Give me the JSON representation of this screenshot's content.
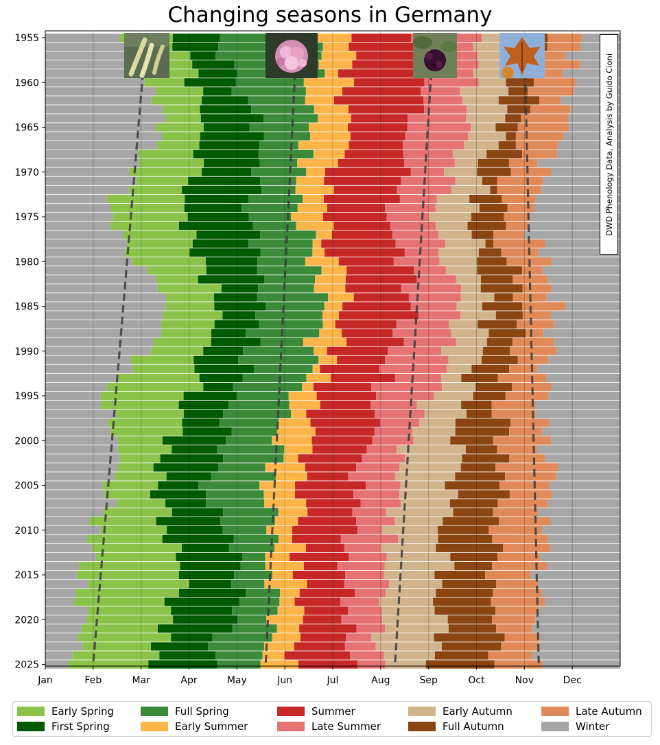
{
  "chart_data": {
    "type": "bar",
    "orientation": "horizontal-stacked",
    "title": "Changing seasons in Germany",
    "credit": "DWD Phenology Data, Analysis by Guido Cioni",
    "x_axis": {
      "range_months": [
        0,
        12
      ],
      "tick_labels": [
        "Jan",
        "Feb",
        "Mar",
        "Apr",
        "May",
        "Jun",
        "Jul",
        "Aug",
        "Sep",
        "Oct",
        "Nov",
        "Dec"
      ]
    },
    "y_axis": {
      "range_years": [
        1955,
        2025
      ],
      "tick_labels": [
        "1955",
        "1960",
        "1965",
        "1970",
        "1975",
        "1980",
        "1985",
        "1990",
        "1995",
        "2000",
        "2005",
        "2010",
        "2015",
        "2020",
        "2025"
      ]
    },
    "grid": "vertical, at month boundaries",
    "legend_placement": "bottom",
    "seasons": [
      {
        "name": "Early Spring",
        "color": "#8bc34a"
      },
      {
        "name": "First Spring",
        "color": "#005a00"
      },
      {
        "name": "Full Spring",
        "color": "#3a8a3a"
      },
      {
        "name": "Early Summer",
        "color": "#fdb54a"
      },
      {
        "name": "Summer",
        "color": "#c62828"
      },
      {
        "name": "Late Summer",
        "color": "#e57373"
      },
      {
        "name": "Early Autumn",
        "color": "#d2b48c"
      },
      {
        "name": "Full Autumn",
        "color": "#8b4513"
      },
      {
        "name": "Late Autumn",
        "color": "#e08a5a"
      },
      {
        "name": "Winter",
        "color": "#a6a6a6"
      }
    ],
    "anchor_years": [
      1955,
      1965,
      1975,
      1985,
      1995,
      2005,
      2015,
      2025
    ],
    "season_start_months_by_anchor": [
      [
        1.75,
        2.65,
        3.6,
        5.7,
        6.35,
        7.8,
        8.95,
        9.75,
        10.45,
        11.05
      ],
      [
        2.45,
        3.5,
        4.45,
        5.5,
        6.2,
        7.7,
        8.8,
        9.45,
        9.95,
        10.7
      ],
      [
        1.2,
        2.8,
        4.3,
        5.35,
        5.8,
        7.2,
        8.2,
        8.9,
        9.4,
        10.1
      ],
      [
        2.7,
        3.65,
        4.5,
        5.8,
        6.3,
        7.7,
        8.6,
        9.25,
        9.95,
        10.65
      ],
      [
        1.35,
        3.05,
        4.0,
        5.3,
        5.75,
        6.95,
        8.0,
        8.8,
        9.5,
        10.4
      ],
      [
        1.4,
        2.25,
        3.4,
        4.6,
        5.3,
        6.5,
        7.25,
        8.45,
        9.5,
        10.5
      ],
      [
        0.75,
        2.9,
        4.1,
        4.8,
        5.3,
        6.3,
        7.1,
        8.3,
        9.4,
        10.35
      ],
      [
        0.6,
        2.25,
        3.5,
        4.5,
        5.2,
        6.3,
        7.0,
        8.15,
        9.4,
        10.3
      ]
    ],
    "trend_lines": [
      {
        "name": "Spring onset trend",
        "from": {
          "year": 1955,
          "month": 2.1
        },
        "to": {
          "year": 2025,
          "month": 1.0
        }
      },
      {
        "name": "Summer onset trend",
        "from": {
          "year": 1955,
          "month": 5.25
        },
        "to": {
          "year": 2025,
          "month": 4.6
        }
      },
      {
        "name": "Autumn onset trend",
        "from": {
          "year": 1955,
          "month": 8.1
        },
        "to": {
          "year": 2025,
          "month": 7.3
        }
      },
      {
        "name": "Winter onset trend",
        "from": {
          "year": 1955,
          "month": 10.0
        },
        "to": {
          "year": 2025,
          "month": 10.3
        }
      }
    ]
  },
  "photos": [
    {
      "name": "hazel-catkins",
      "bg": "#5a6b52",
      "fg": "#d9d9a0"
    },
    {
      "name": "elder-flowers",
      "bg": "#2e3a2a",
      "fg": "#e7a8c8"
    },
    {
      "name": "elder-berries",
      "bg": "#6e7f5a",
      "fg": "#3a1030"
    },
    {
      "name": "autumn-leaves",
      "bg": "#8fb0d8",
      "fg": "#c06020"
    }
  ]
}
